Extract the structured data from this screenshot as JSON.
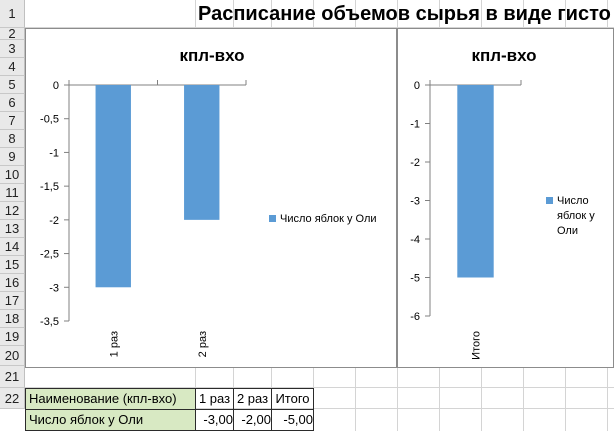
{
  "sheet": {
    "row_numbers": [
      "1",
      "2",
      "3",
      "4",
      "5",
      "6",
      "7",
      "8",
      "9",
      "10",
      "11",
      "12",
      "13",
      "14",
      "15",
      "16",
      "17",
      "18",
      "19",
      "20",
      "21",
      "22"
    ],
    "title": "Расписание объемов сырья в виде гисто"
  },
  "table": {
    "header": [
      "Наименование (кпл-вхо)",
      "1 раз",
      "2 раз",
      "Итого"
    ],
    "row": [
      "Число яблок у Оли",
      "-3,00",
      "-2,00",
      "-5,00"
    ]
  },
  "colors": {
    "bar": "#5b9bd5",
    "header_fill": "#d8e9c3"
  },
  "chart_data": [
    {
      "type": "bar",
      "title": "кпл-вхо",
      "categories": [
        "1 раз",
        "2 раз"
      ],
      "series": [
        {
          "name": "Число яблок у Оли",
          "values": [
            -3,
            -2
          ]
        }
      ],
      "ylim": [
        -3.5,
        0
      ],
      "yticks": [
        "0",
        "-0,5",
        "-1",
        "-1,5",
        "-2",
        "-2,5",
        "-3",
        "-3,5"
      ],
      "ytick_values": [
        0,
        -0.5,
        -1,
        -1.5,
        -2,
        -2.5,
        -3,
        -3.5
      ],
      "grid": false,
      "legend": "right"
    },
    {
      "type": "bar",
      "title": "кпл-вхо",
      "categories": [
        "Итого"
      ],
      "series": [
        {
          "name": "Число яблок у Оли",
          "values": [
            -5
          ]
        }
      ],
      "ylim": [
        -6,
        0
      ],
      "yticks": [
        "0",
        "-1",
        "-2",
        "-3",
        "-4",
        "-5",
        "-6"
      ],
      "ytick_values": [
        0,
        -1,
        -2,
        -3,
        -4,
        -5,
        -6
      ],
      "grid": false,
      "legend": "right"
    }
  ]
}
